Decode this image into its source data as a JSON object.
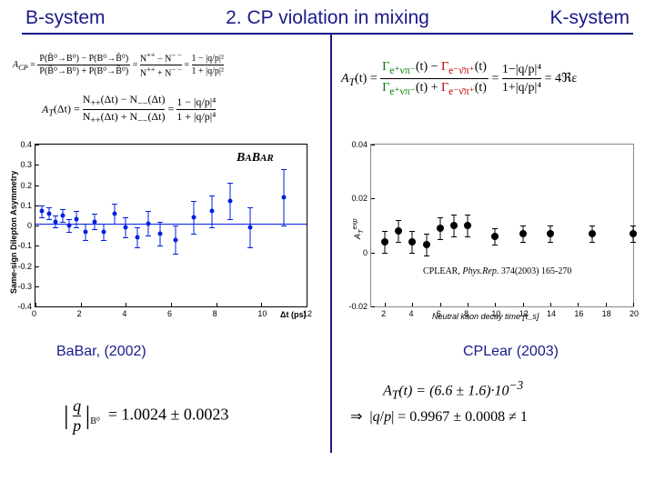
{
  "header": {
    "left": "B-system",
    "title": "2. CP violation in mixing",
    "right": "K-system"
  },
  "left": {
    "formula_acp": "A_{CP} = [P(B̄⁰→B⁰) − P(B⁰→B̄⁰)] / [P(B̄⁰→B⁰) + P(B⁰→B̄⁰)] = (N⁺⁺ − N⁻⁻)/(N⁺⁺ + N⁻⁻) = (1 − |q/p|²)/(1 + |q/p|²)",
    "formula_at": "A_T(Δt) = [N₊₊(Δt) − N₋₋(Δt)] / [N₊₊(Δt) + N₋₋(Δt)] = (1 − |q/p|⁴)/(1 + |q/p|⁴)",
    "chart": {
      "type": "scatter",
      "y_label": "Same-sign Dilepton Asymmetry",
      "x_label": "Δt (ps)",
      "xlim": [
        0,
        12
      ],
      "ylim": [
        -0.4,
        0.4
      ],
      "xticks": [
        0,
        2,
        4,
        6,
        8,
        10,
        12
      ],
      "yticks": [
        -0.4,
        -0.3,
        -0.2,
        -0.1,
        0,
        0.1,
        0.2,
        0.3,
        0.4
      ],
      "fit_y": 0.01,
      "marker_color": "#0020e0",
      "points": [
        {
          "x": 0.3,
          "y": 0.07,
          "ey": 0.03
        },
        {
          "x": 0.6,
          "y": 0.06,
          "ey": 0.03
        },
        {
          "x": 0.9,
          "y": 0.02,
          "ey": 0.03
        },
        {
          "x": 1.2,
          "y": 0.05,
          "ey": 0.03
        },
        {
          "x": 1.5,
          "y": 0.0,
          "ey": 0.03
        },
        {
          "x": 1.8,
          "y": 0.03,
          "ey": 0.04
        },
        {
          "x": 2.2,
          "y": -0.03,
          "ey": 0.04
        },
        {
          "x": 2.6,
          "y": 0.02,
          "ey": 0.04
        },
        {
          "x": 3.0,
          "y": -0.03,
          "ey": 0.04
        },
        {
          "x": 3.5,
          "y": 0.06,
          "ey": 0.05
        },
        {
          "x": 4.0,
          "y": -0.01,
          "ey": 0.05
        },
        {
          "x": 4.5,
          "y": -0.06,
          "ey": 0.05
        },
        {
          "x": 5.0,
          "y": 0.01,
          "ey": 0.06
        },
        {
          "x": 5.5,
          "y": -0.04,
          "ey": 0.06
        },
        {
          "x": 6.2,
          "y": -0.07,
          "ey": 0.07
        },
        {
          "x": 7.0,
          "y": 0.04,
          "ey": 0.08
        },
        {
          "x": 7.8,
          "y": 0.07,
          "ey": 0.08
        },
        {
          "x": 8.6,
          "y": 0.12,
          "ey": 0.09
        },
        {
          "x": 9.5,
          "y": -0.01,
          "ey": 0.1
        },
        {
          "x": 11.0,
          "y": 0.14,
          "ey": 0.14
        }
      ]
    },
    "badge": "BᴀBᴀʀ",
    "caption": "BaBar, (2002)",
    "result": "|q/p|_{B⁰} = 1.0024 ± 0.0023"
  },
  "right": {
    "formula_at": "A_T(t) = [Γ_{e⁺νπ⁻}(t) − Γ_{e⁻ν̄π⁺}(t)] / [Γ_{e⁺νπ⁻}(t) + Γ_{e⁻ν̄π⁺}(t)] = (1 − |q/p|⁴)/(1 + |q/p|⁴) = 4ℜε",
    "chart": {
      "type": "scatter",
      "y_label": "A_T^{exp}",
      "x_label": "Neutral kaon decay time [τ_s]",
      "xlim": [
        1,
        20
      ],
      "ylim": [
        -0.02,
        0.04
      ],
      "xticks": [
        2,
        4,
        6,
        8,
        10,
        12,
        14,
        16,
        18,
        20
      ],
      "yticks": [
        -0.02,
        0,
        0.02,
        0.04
      ],
      "marker_color": "#000000",
      "points": [
        {
          "x": 2,
          "y": 0.004,
          "ey": 0.004
        },
        {
          "x": 3,
          "y": 0.008,
          "ey": 0.004
        },
        {
          "x": 4,
          "y": 0.004,
          "ey": 0.004
        },
        {
          "x": 5,
          "y": 0.003,
          "ey": 0.004
        },
        {
          "x": 6,
          "y": 0.009,
          "ey": 0.004
        },
        {
          "x": 7,
          "y": 0.01,
          "ey": 0.004
        },
        {
          "x": 8,
          "y": 0.01,
          "ey": 0.004
        },
        {
          "x": 10,
          "y": 0.006,
          "ey": 0.003
        },
        {
          "x": 12,
          "y": 0.007,
          "ey": 0.003
        },
        {
          "x": 14,
          "y": 0.007,
          "ey": 0.003
        },
        {
          "x": 17,
          "y": 0.007,
          "ey": 0.003
        },
        {
          "x": 20,
          "y": 0.007,
          "ey": 0.003
        }
      ]
    },
    "ref": "CPLEAR, Phys.Rep. 374(2003) 165-270",
    "caption": "CPLear (2003)",
    "result_at": "A_T(t) = (6.6 ± 1.6)·10⁻³",
    "result_qp": "⇒ |q/p| = 0.9967 ± 0.0008 ≠ 1",
    "colors": {
      "green": "#008000",
      "red": "#c00000"
    }
  }
}
